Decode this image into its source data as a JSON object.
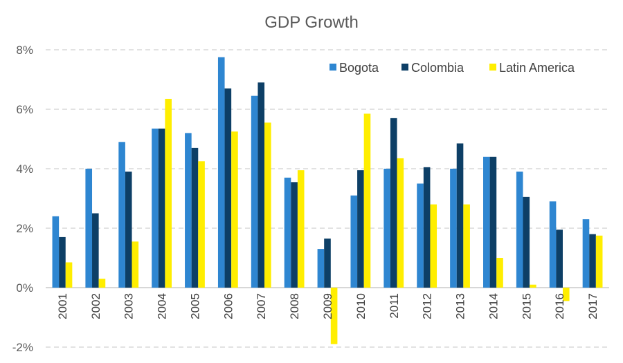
{
  "chart_data": {
    "type": "bar",
    "title": "GDP Growth",
    "categories": [
      "2001",
      "2002",
      "2003",
      "2004",
      "2005",
      "2006",
      "2007",
      "2008",
      "2009",
      "2010",
      "2011",
      "2012",
      "2013",
      "2014",
      "2015",
      "2016",
      "2017"
    ],
    "series": [
      {
        "name": "Bogota",
        "color": "#2E86D1",
        "values": [
          2.4,
          4.0,
          4.9,
          5.35,
          5.2,
          7.75,
          6.45,
          3.7,
          1.3,
          3.1,
          4.0,
          3.5,
          4.0,
          4.4,
          3.9,
          2.9,
          2.3
        ]
      },
      {
        "name": "Colombia",
        "color": "#0D3F66",
        "values": [
          1.7,
          2.5,
          3.9,
          5.35,
          4.7,
          6.7,
          6.9,
          3.55,
          1.65,
          3.95,
          5.7,
          4.05,
          4.85,
          4.4,
          3.05,
          1.95,
          1.8
        ]
      },
      {
        "name": "Latin America",
        "color": "#FFEE00",
        "values": [
          0.85,
          0.3,
          1.55,
          6.35,
          4.25,
          5.25,
          5.55,
          3.95,
          -1.9,
          5.85,
          4.35,
          2.8,
          2.8,
          1.0,
          0.1,
          -0.45,
          1.75
        ]
      }
    ],
    "ylim": [
      -2,
      8
    ],
    "yticks": [
      -2,
      0,
      2,
      4,
      6,
      8
    ],
    "ytick_labels": [
      "-2%",
      "0%",
      "2%",
      "4%",
      "6%",
      "8%"
    ],
    "grid": true,
    "legend_position": "top-right",
    "xlabel": "",
    "ylabel": ""
  }
}
